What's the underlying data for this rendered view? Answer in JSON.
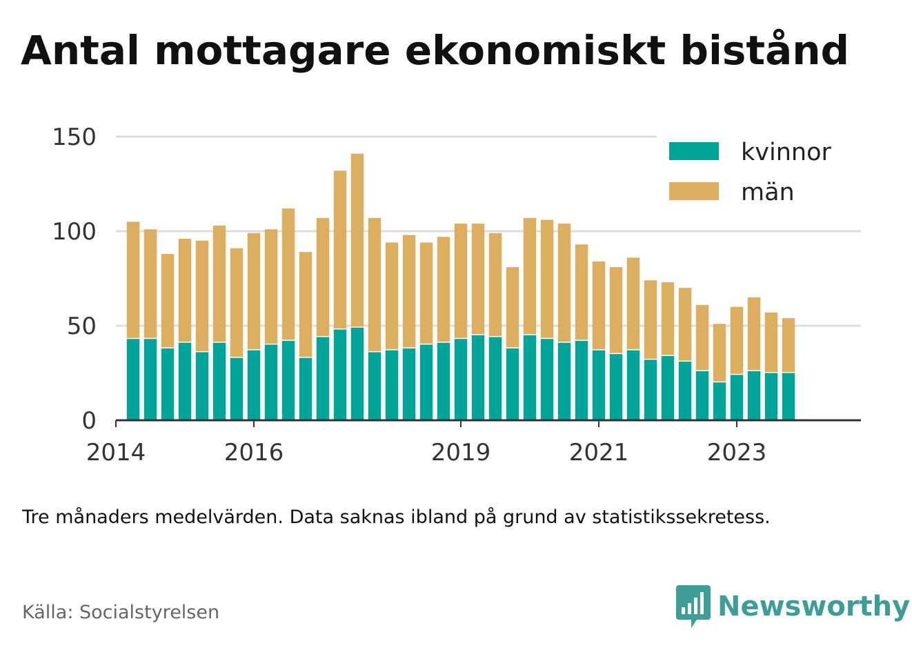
{
  "title": "Antal mottagare ekonomiskt bistånd",
  "note": "Tre månaders medelvärden. Data saknas ibland på grund av statistikssekretess.",
  "source": "Källa: Socialstyrelsen",
  "brand": {
    "name": "Newsworthy",
    "icon": "newsworthy-logo-icon",
    "color": "#3f9d97"
  },
  "chart_data": {
    "type": "bar",
    "stacked": true,
    "ylim": [
      0,
      150
    ],
    "yticks": [
      0,
      50,
      100,
      150
    ],
    "grid": true,
    "xlabel": "",
    "ylabel": "",
    "x_start": 2014.0,
    "x_end": 2024.8,
    "period_step": 0.25,
    "first_period": 2014.25,
    "xticks": [
      2014,
      2016,
      2019,
      2021,
      2023
    ],
    "xtick_labels": [
      "2014",
      "2016",
      "2019",
      "2021",
      "2023"
    ],
    "legend_position": "top-right",
    "series": [
      {
        "name": "kvinnor",
        "color": "#00a499",
        "values": [
          43,
          43,
          38,
          41,
          36,
          41,
          33,
          37,
          40,
          42,
          33,
          44,
          48,
          49,
          36,
          37,
          38,
          40,
          41,
          43,
          45,
          44,
          38,
          45,
          43,
          41,
          42,
          37,
          35,
          37,
          32,
          34,
          31,
          26,
          20,
          24,
          26,
          25,
          25
        ]
      },
      {
        "name": "män",
        "color": "#dbaf5f",
        "values": [
          62,
          58,
          50,
          55,
          59,
          62,
          58,
          62,
          61,
          70,
          56,
          63,
          84,
          92,
          71,
          57,
          60,
          54,
          56,
          61,
          59,
          55,
          43,
          62,
          63,
          63,
          51,
          47,
          46,
          49,
          42,
          39,
          39,
          35,
          31,
          36,
          39,
          32,
          29
        ]
      }
    ]
  }
}
